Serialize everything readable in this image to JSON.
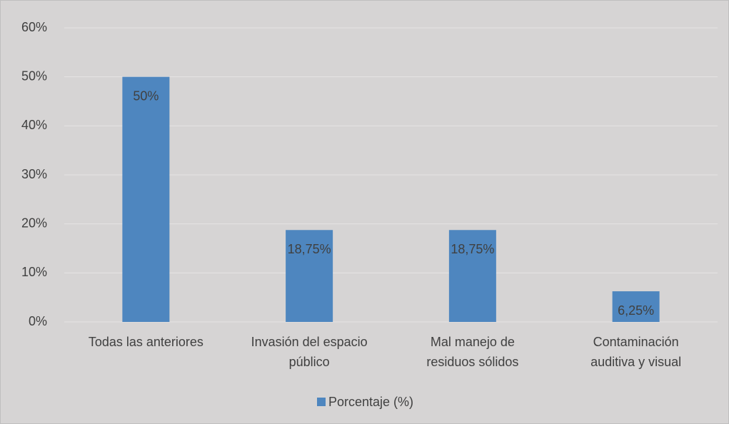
{
  "chart_data": {
    "type": "bar",
    "categories": [
      "Todas las anteriores",
      "Invasión del espacio público",
      "Mal manejo de residuos sólidos",
      "Contaminación auditiva y visual"
    ],
    "series": [
      {
        "name": "Porcentaje (%)",
        "color": "#4e86bf",
        "values": [
          50,
          18.75,
          18.75,
          6.25
        ],
        "value_labels": [
          "50%",
          "18,75%",
          "18,75%",
          "6,25%"
        ]
      }
    ],
    "ylim": [
      0,
      60
    ],
    "yticks": [
      {
        "value": 0,
        "label": "0%"
      },
      {
        "value": 10,
        "label": "10%"
      },
      {
        "value": 20,
        "label": "20%"
      },
      {
        "value": 30,
        "label": "30%"
      },
      {
        "value": 40,
        "label": "40%"
      },
      {
        "value": 50,
        "label": "50%"
      },
      {
        "value": 60,
        "label": "60%"
      }
    ],
    "grid": true,
    "legend": "bottom"
  }
}
